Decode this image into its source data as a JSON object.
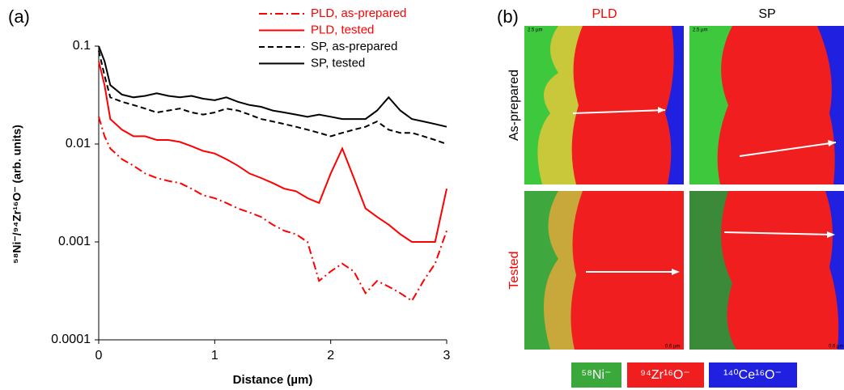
{
  "chart_data": {
    "type": "line",
    "panel_label": "(a)",
    "x_label": "Distance (µm)",
    "y_label": "⁵⁸Ni⁻/⁹⁴Zr¹⁶O⁻ (arb. units)",
    "x": [
      0,
      0.05,
      0.1,
      0.2,
      0.3,
      0.4,
      0.5,
      0.6,
      0.7,
      0.8,
      0.9,
      1.0,
      1.1,
      1.2,
      1.3,
      1.4,
      1.5,
      1.6,
      1.7,
      1.8,
      1.9,
      2.0,
      2.1,
      2.2,
      2.3,
      2.4,
      2.5,
      2.6,
      2.7,
      2.8,
      2.9,
      3.0
    ],
    "series": [
      {
        "name": "PLD, as-prepared",
        "color": "#ff0000",
        "dash": "dash-dot",
        "values": [
          0.019,
          0.012,
          0.009,
          0.007,
          0.006,
          0.005,
          0.0045,
          0.0042,
          0.004,
          0.0035,
          0.003,
          0.0028,
          0.0025,
          0.0022,
          0.002,
          0.0018,
          0.0015,
          0.0013,
          0.0012,
          0.001,
          0.0004,
          0.0005,
          0.0006,
          0.0005,
          0.0003,
          0.0004,
          0.00035,
          0.0003,
          0.00025,
          0.0004,
          0.0006,
          0.0013
        ]
      },
      {
        "name": "PLD, tested",
        "color": "#ff0000",
        "dash": "solid",
        "values": [
          0.07,
          0.04,
          0.018,
          0.014,
          0.012,
          0.012,
          0.011,
          0.011,
          0.0105,
          0.0095,
          0.0085,
          0.008,
          0.007,
          0.006,
          0.005,
          0.0045,
          0.004,
          0.0035,
          0.0033,
          0.0028,
          0.0025,
          0.005,
          0.009,
          0.0045,
          0.0022,
          0.0018,
          0.0015,
          0.0012,
          0.001,
          0.001,
          0.001,
          0.0035
        ]
      },
      {
        "name": "SP, as-prepared",
        "color": "#000000",
        "dash": "dashed",
        "values": [
          0.09,
          0.05,
          0.03,
          0.027,
          0.025,
          0.023,
          0.021,
          0.022,
          0.023,
          0.021,
          0.02,
          0.021,
          0.023,
          0.022,
          0.02,
          0.018,
          0.017,
          0.016,
          0.015,
          0.014,
          0.013,
          0.012,
          0.013,
          0.014,
          0.015,
          0.017,
          0.014,
          0.013,
          0.013,
          0.012,
          0.011,
          0.01
        ]
      },
      {
        "name": "SP, tested",
        "color": "#000000",
        "dash": "solid",
        "values": [
          0.1,
          0.07,
          0.04,
          0.032,
          0.03,
          0.031,
          0.033,
          0.031,
          0.03,
          0.031,
          0.029,
          0.028,
          0.03,
          0.027,
          0.025,
          0.024,
          0.022,
          0.021,
          0.02,
          0.019,
          0.02,
          0.019,
          0.018,
          0.018,
          0.018,
          0.022,
          0.03,
          0.022,
          0.018,
          0.017,
          0.016,
          0.015
        ]
      }
    ],
    "xlim": [
      0,
      3
    ],
    "xticks": [
      0,
      1,
      2,
      3
    ],
    "ylim": [
      0.0001,
      0.1
    ],
    "yticks": [
      0.0001,
      0.001,
      0.01,
      0.1
    ],
    "y_scale": "log",
    "grid": false
  },
  "maps": {
    "panel_label": "(b)",
    "columns": [
      "PLD",
      "SP"
    ],
    "rows": [
      "As-prepared",
      "Tested"
    ],
    "scale_bars": [
      "2.5 µm",
      "2.5 µm",
      "0.6 µm",
      "0.6 µm"
    ],
    "legend": [
      "⁵⁸Ni⁻",
      "⁹⁴Zr¹⁶O⁻",
      "¹⁴⁰Ce¹⁶O⁻"
    ]
  }
}
